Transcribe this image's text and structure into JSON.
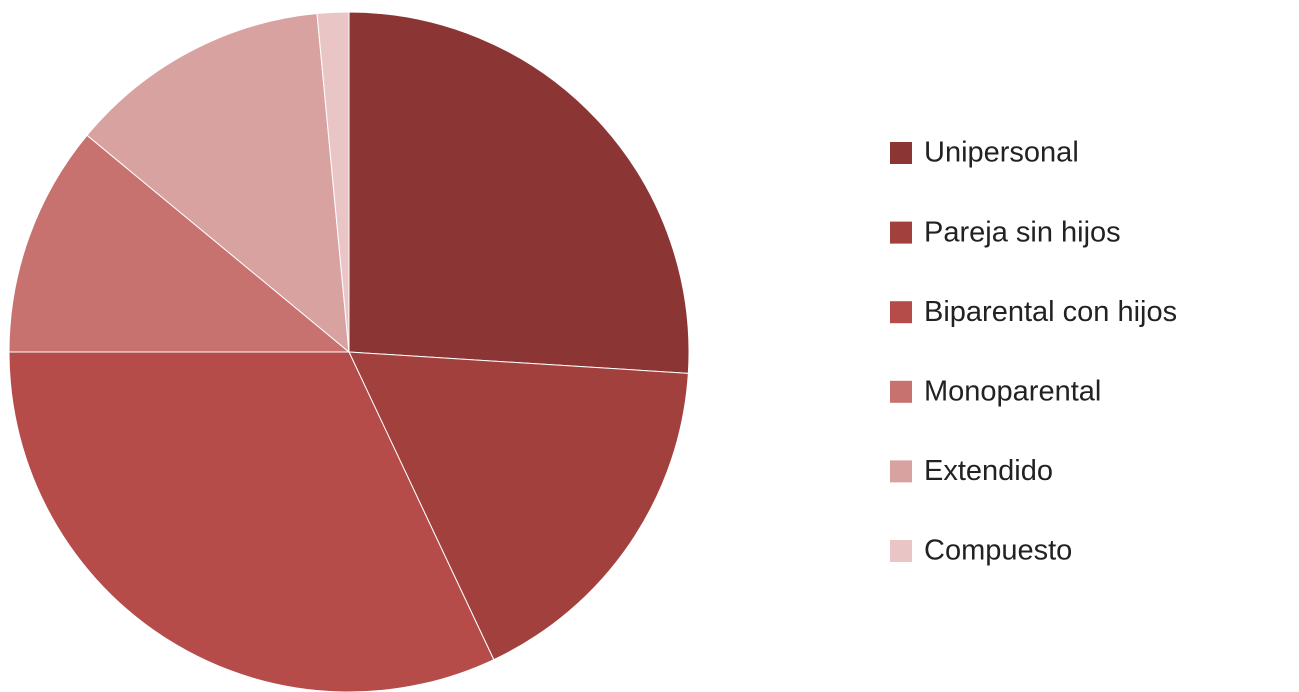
{
  "chart_data": {
    "type": "pie",
    "categories": [
      "Unipersonal",
      "Pareja sin hijos",
      "Biparental con hijos",
      "Monoparental",
      "Extendido",
      "Compuesto"
    ],
    "values": [
      26,
      17,
      32,
      11,
      12.5,
      1.5
    ],
    "colors": [
      "#8b3535",
      "#a2403e",
      "#b54c49",
      "#c87270",
      "#d8a2a1",
      "#e9c5c5"
    ],
    "legend": "right"
  }
}
